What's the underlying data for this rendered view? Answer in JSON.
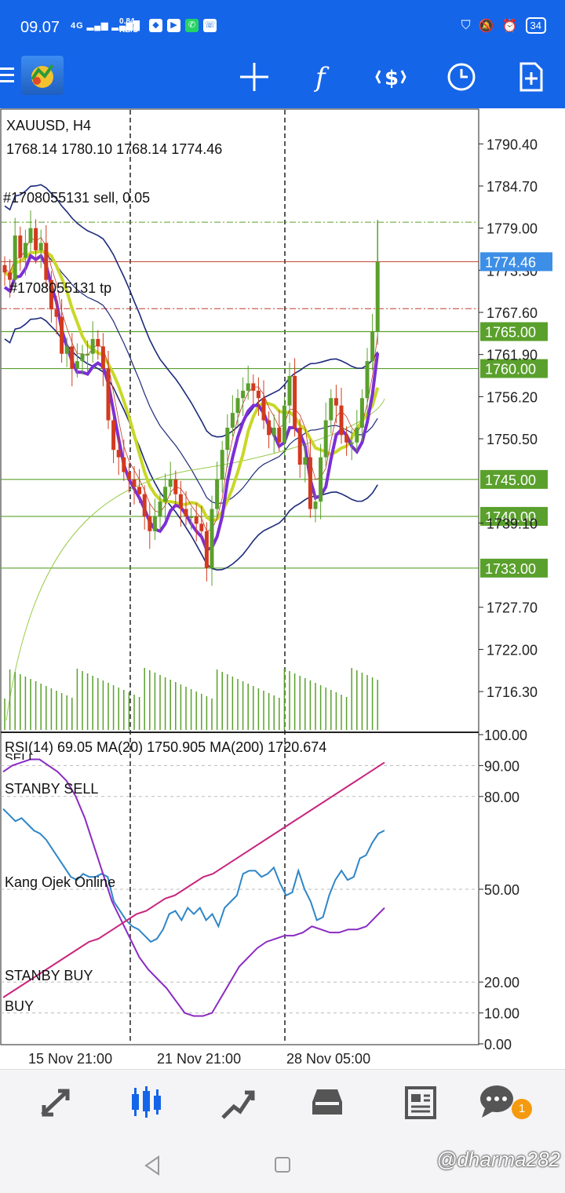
{
  "status_bar": {
    "time": "09.07",
    "network": "4G",
    "speed_value": "0.84",
    "speed_unit": "KB/S",
    "battery": "34"
  },
  "toolbar": {
    "icons": [
      "menu-icon",
      "metatrader-logo",
      "crosshair-icon",
      "indicators-icon",
      "trade-icon",
      "timeframe-icon",
      "new-order-icon"
    ]
  },
  "chart": {
    "symbol": "XAUUSD, H4",
    "ohlc": "1768.14 1780.10 1768.14 1774.46",
    "order_sell_label": "#1708055131 sell, 0.05",
    "order_tp_label": "#1708055131 tp",
    "price_ticks": [
      "1790.40",
      "1784.70",
      "1779.00",
      "1773.30",
      "1767.60",
      "1761.90",
      "1756.20",
      "1750.50",
      "1739.10",
      "1727.70",
      "1722.00",
      "1716.30"
    ],
    "level_tags": [
      "1765.00",
      "1760.00",
      "1745.00",
      "1740.00",
      "1733.00"
    ],
    "current_price": "1774.46",
    "colors": {
      "up": "#5aa02c",
      "down": "#d23a1e",
      "ema": "#c8d828",
      "purple": "#7b2fd6",
      "band": "#1c2a7a",
      "level": "#5aa02c",
      "price": "#3d8ee6"
    }
  },
  "chart_data": {
    "type": "candlestick",
    "symbol": "XAUUSD",
    "timeframe": "H4",
    "open": 1768.14,
    "high": 1780.1,
    "low": 1768.14,
    "close": 1774.46,
    "ylim": [
      1711,
      1795
    ],
    "x_tick_labels": [
      "15 Nov 21:00",
      "21 Nov 21:00",
      "28 Nov 05:00"
    ],
    "horizontal_levels": [
      1765.0,
      1760.0,
      1745.0,
      1740.0,
      1733.0
    ],
    "close_series": [
      1773,
      1772,
      1778,
      1775,
      1777,
      1779,
      1776,
      1777,
      1772,
      1768,
      1767,
      1762,
      1763,
      1760,
      1761,
      1762,
      1762,
      1764,
      1763,
      1760,
      1753,
      1749,
      1748,
      1746,
      1745,
      1744,
      1743,
      1740,
      1738,
      1740,
      1742,
      1744,
      1745,
      1743,
      1741,
      1740,
      1740,
      1739,
      1738,
      1733,
      1741,
      1745,
      1749,
      1752,
      1754,
      1756,
      1757,
      1758,
      1757,
      1756,
      1753,
      1751,
      1752,
      1750,
      1755,
      1759,
      1752,
      1747,
      1748,
      1741,
      1742,
      1748,
      1753,
      1756,
      1755,
      1751,
      1750,
      1750,
      1752,
      1756,
      1761,
      1765,
      1774.46
    ]
  },
  "rsi_panel": {
    "header": "RSI(14) 69.05 MA(20) 1750.905 MA(200) 1720.674",
    "labels": [
      "SELL",
      "STANBY SELL",
      "Kang Ojek Online",
      "STANBY BUY",
      "BUY"
    ],
    "ticks": [
      "100.00",
      "90.00",
      "80.00",
      "50.00",
      "20.00",
      "10.00",
      "0.00"
    ]
  },
  "rsi_data": {
    "type": "line",
    "ylim": [
      0,
      100
    ],
    "levels": [
      90,
      80,
      50,
      20,
      10
    ],
    "series": [
      {
        "values": [
          76,
          74,
          72,
          73,
          71,
          69,
          68,
          66,
          63,
          60,
          57,
          54,
          53,
          55,
          54,
          54,
          55,
          54,
          46,
          43,
          40,
          38,
          37,
          35,
          33,
          34,
          37,
          42,
          43,
          40,
          44,
          42,
          44,
          40,
          42,
          38,
          44,
          46,
          48,
          55,
          56,
          56,
          54,
          55,
          57,
          52,
          48,
          49,
          56,
          50,
          46,
          40,
          41,
          48,
          53,
          56,
          53,
          54,
          60,
          61,
          65,
          68,
          69
        ]
      },
      {
        "values": [
          88,
          90,
          91,
          92,
          92,
          90,
          88,
          85,
          80,
          73,
          64,
          55,
          46,
          40,
          34,
          28,
          24,
          21,
          18,
          14,
          10,
          9,
          9,
          10,
          15,
          20,
          25,
          28,
          31,
          33,
          34,
          35,
          35,
          36,
          38,
          37,
          36,
          36,
          37,
          37,
          38,
          41,
          44
        ]
      },
      {
        "values": [
          15,
          17,
          19,
          21,
          23,
          25,
          27,
          29,
          31,
          33,
          34,
          36,
          38,
          40,
          42,
          43,
          45,
          47,
          48,
          50,
          52,
          54,
          55,
          57,
          59,
          61,
          63,
          65,
          67,
          69,
          71,
          73,
          75,
          77,
          79,
          81,
          83,
          85,
          87,
          89,
          91
        ]
      }
    ]
  },
  "bottom_nav": {
    "items": [
      "quotes-icon",
      "chart-icon",
      "trade-icon",
      "history-icon",
      "news-icon",
      "messages-icon"
    ],
    "badge": "1"
  },
  "watermark": "@dharma282"
}
